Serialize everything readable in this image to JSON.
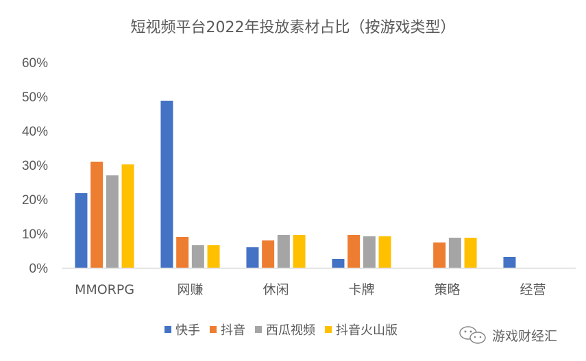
{
  "chart_data": {
    "type": "bar",
    "title": "短视频平台2022年投放素材占比（按游戏类型）",
    "categories": [
      "MMORPG",
      "网赚",
      "休闲",
      "卡牌",
      "策略",
      "经营"
    ],
    "series": [
      {
        "name": "快手",
        "color": "#4472C4",
        "values": [
          21.8,
          48.8,
          6.0,
          2.6,
          0,
          3.2
        ]
      },
      {
        "name": "抖音",
        "color": "#ED7D31",
        "values": [
          31.0,
          9.0,
          8.0,
          9.6,
          7.4,
          0
        ]
      },
      {
        "name": "西瓜视频",
        "color": "#A5A5A5",
        "values": [
          27.0,
          6.6,
          9.6,
          9.2,
          8.8,
          0
        ]
      },
      {
        "name": "抖音火山版",
        "color": "#FFC000",
        "values": [
          30.2,
          6.6,
          9.6,
          9.2,
          8.8,
          0
        ]
      }
    ],
    "ylim": [
      0,
      60
    ],
    "yticks": [
      "0%",
      "10%",
      "20%",
      "30%",
      "40%",
      "50%",
      "60%"
    ],
    "grid": false,
    "legend_position": "bottom"
  },
  "watermark": {
    "text": "游戏财经汇",
    "icon": "wechat-icon"
  }
}
